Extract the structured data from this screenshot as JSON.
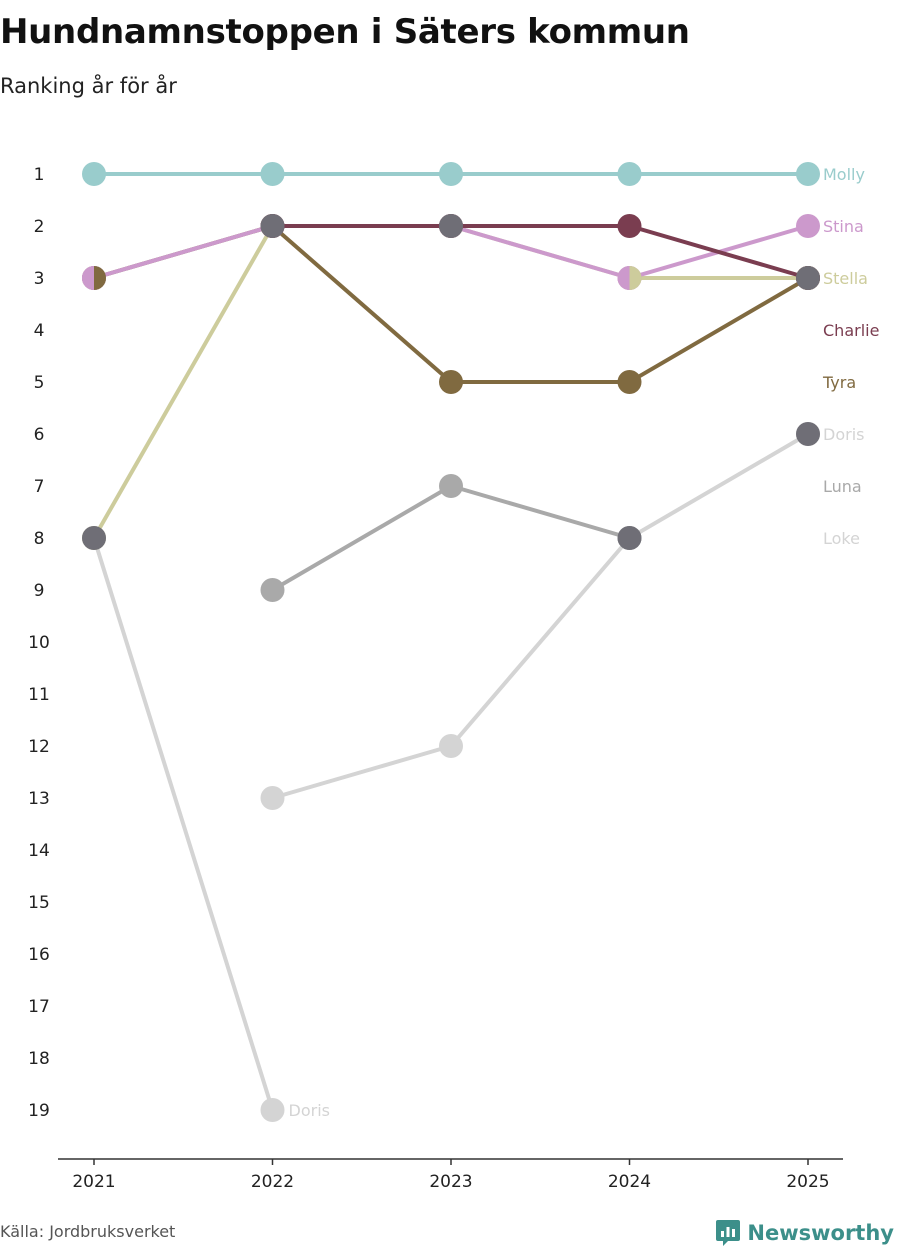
{
  "chart_data": {
    "type": "line",
    "title": "Hundnamnstoppen i Säters kommun",
    "subtitle": "Ranking år för år",
    "xlabel": "",
    "ylabel": "",
    "x": [
      "2021",
      "2022",
      "2023",
      "2024",
      "2025"
    ],
    "y_ticks": [
      "1",
      "2",
      "3",
      "4",
      "5",
      "6",
      "7",
      "8",
      "9",
      "10",
      "11",
      "12",
      "13",
      "14",
      "15",
      "16",
      "17",
      "18",
      "19"
    ],
    "ylim": [
      1,
      19
    ],
    "series": [
      {
        "name": "Loke",
        "color": "#d4d4d4",
        "values": [
          8,
          19,
          null,
          null,
          null
        ]
      },
      {
        "name": "Doris",
        "color": "#d4d4d4",
        "values": [
          null,
          13,
          12,
          8,
          6
        ]
      },
      {
        "name": "Luna",
        "color": "#a9a9a9",
        "values": [
          null,
          9,
          7,
          8,
          null
        ]
      },
      {
        "name": "Stella",
        "color": "#cdcc9c",
        "values": [
          8,
          2,
          2,
          3,
          3
        ]
      },
      {
        "name": "Tyra",
        "color": "#806a40",
        "values": [
          3,
          2,
          5,
          5,
          3
        ]
      },
      {
        "name": "Stina",
        "color": "#cc99cc",
        "values": [
          3,
          2,
          2,
          3,
          2
        ]
      },
      {
        "name": "Charlie",
        "color": "#7a3d50",
        "values": [
          null,
          2,
          2,
          2,
          3
        ]
      },
      {
        "name": "Molly",
        "color": "#99cccc",
        "values": [
          1,
          1,
          1,
          1,
          1
        ]
      }
    ],
    "tie_markers": [
      {
        "x": "2021",
        "rank": 8,
        "color": "#6f6e76"
      },
      {
        "x": "2022",
        "rank": 2,
        "color": "#6f6e76"
      },
      {
        "x": "2023",
        "rank": 2,
        "color": "#6f6e76"
      },
      {
        "x": "2024",
        "rank": 8,
        "color": "#6f6e76"
      },
      {
        "x": "2025",
        "rank": 3,
        "color": "#6f6e76"
      },
      {
        "x": "2025",
        "rank": 6,
        "color": "#6f6e76"
      }
    ],
    "split_markers": [
      {
        "x": "2021",
        "rank": 3,
        "left": "#cc99cc",
        "right": "#806a40"
      },
      {
        "x": "2024",
        "rank": 3,
        "left": "#cc99cc",
        "right": "#cdcc9c"
      }
    ],
    "end_labels": [
      {
        "text": "Molly",
        "rank": 1,
        "color": "#99cccc"
      },
      {
        "text": "Stina",
        "rank": 2,
        "color": "#cc99cc"
      },
      {
        "text": "Stella",
        "rank": 3,
        "color": "#cdcc9c"
      },
      {
        "text": "Charlie",
        "rank": 4,
        "color": "#7a3d50"
      },
      {
        "text": "Tyra",
        "rank": 5,
        "color": "#806a40"
      },
      {
        "text": "Doris",
        "rank": 6,
        "color": "#d4d4d4"
      },
      {
        "text": "Luna",
        "rank": 7,
        "color": "#a9a9a9"
      },
      {
        "text": "Loke",
        "rank": 8,
        "color": "#d4d4d4"
      }
    ],
    "inline_labels": [
      {
        "text": "Doris",
        "x": "2022",
        "rank": 19,
        "color": "#d4d4d4"
      }
    ]
  },
  "footer": {
    "source": "Källa: Jordbruksverket",
    "brand": "Newsworthy",
    "brand_color": "#3c8f8a"
  }
}
